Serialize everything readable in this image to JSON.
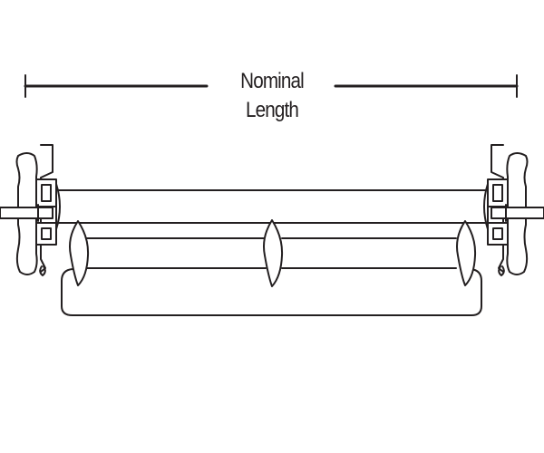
{
  "diagram": {
    "dimension_label": "Nominal Length",
    "stroke_color": "#231f20",
    "background_color": "#ffffff"
  }
}
